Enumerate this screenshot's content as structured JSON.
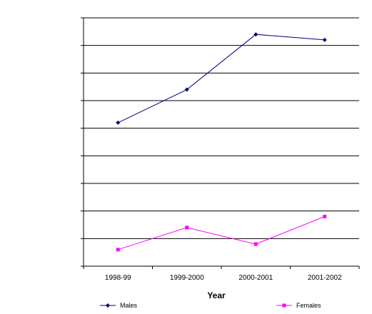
{
  "chart_data": {
    "type": "line",
    "title": "",
    "xlabel": "Year",
    "ylabel": "",
    "categories": [
      "1998-99",
      "1999-2000",
      "2000-2001",
      "2001-2002"
    ],
    "y_axis": {
      "min": 0,
      "max": 9,
      "gridline_step": 1,
      "tick_labels_shown": false
    },
    "grid": true,
    "legend_position": "bottom",
    "series": [
      {
        "name": "Males",
        "color": "#000080",
        "marker": "diamond",
        "values": [
          5.2,
          6.4,
          8.4,
          8.2
        ]
      },
      {
        "name": "Females",
        "color": "#ff00ff",
        "marker": "square",
        "values": [
          0.6,
          1.4,
          0.8,
          1.8
        ]
      }
    ]
  }
}
